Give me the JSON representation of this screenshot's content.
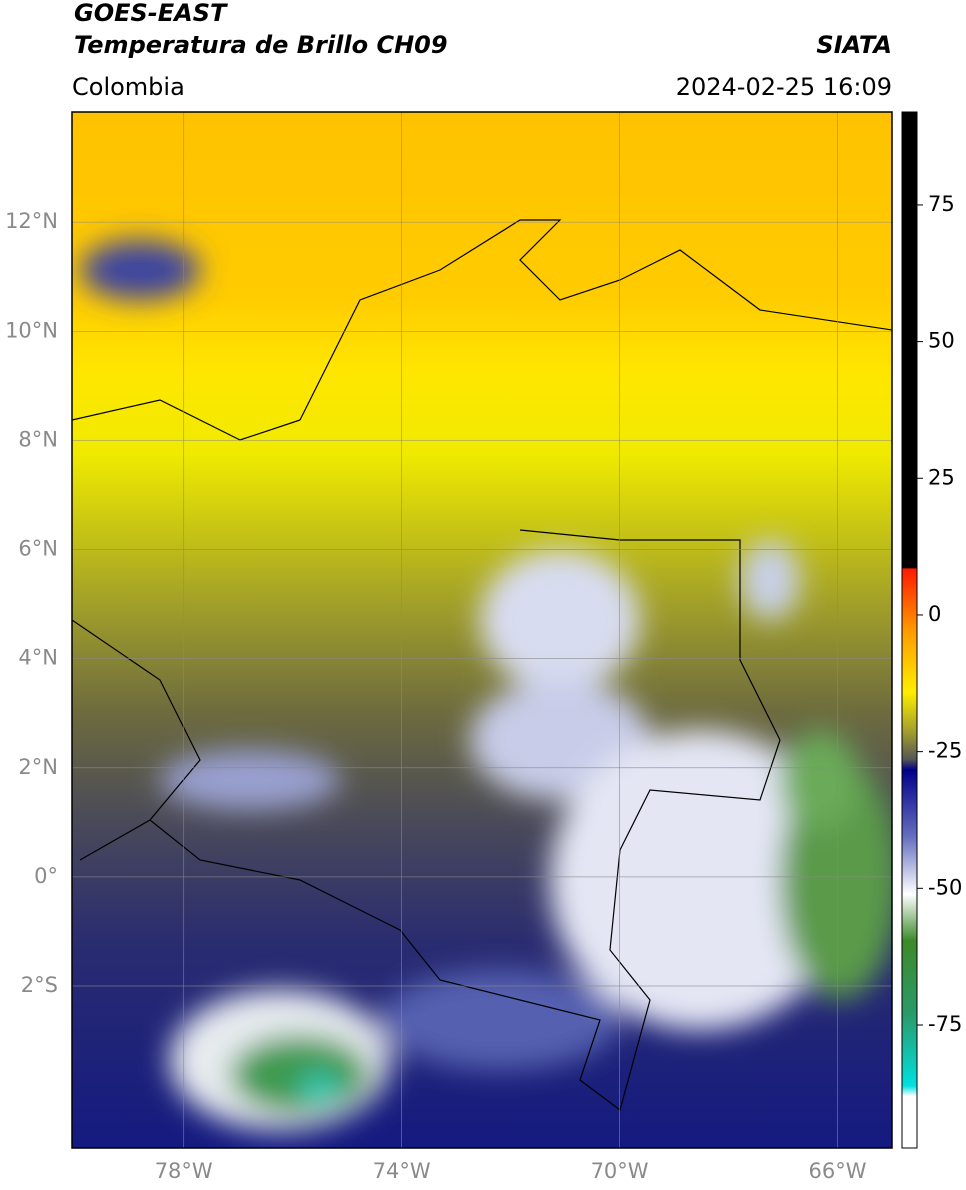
{
  "header": {
    "title": "GOES-EAST",
    "subtitle": "Temperatura de Brillo CH09",
    "region": "Colombia",
    "source": "SIATA",
    "datetime": "2024-02-25 16:09"
  },
  "map": {
    "xlim": [
      -80.05,
      -65.0
    ],
    "ylim": [
      -4.97,
      14.02
    ],
    "xticks": [
      {
        "value": -78,
        "label": "78°W"
      },
      {
        "value": -74,
        "label": "74°W"
      },
      {
        "value": -70,
        "label": "70°W"
      },
      {
        "value": -66,
        "label": "66°W"
      }
    ],
    "yticks": [
      {
        "value": 12,
        "label": "12°N"
      },
      {
        "value": 10,
        "label": "10°N"
      },
      {
        "value": 8,
        "label": "8°N"
      },
      {
        "value": 6,
        "label": "6°N"
      },
      {
        "value": 4,
        "label": "4°N"
      },
      {
        "value": 2,
        "label": "2°N"
      },
      {
        "value": 0,
        "label": "0°"
      },
      {
        "value": -2,
        "label": "2°S"
      }
    ]
  },
  "colorbar": {
    "clim": [
      -97.5,
      92
    ],
    "ticks": [
      75,
      50,
      25,
      0,
      -25,
      -50,
      -75
    ]
  }
}
